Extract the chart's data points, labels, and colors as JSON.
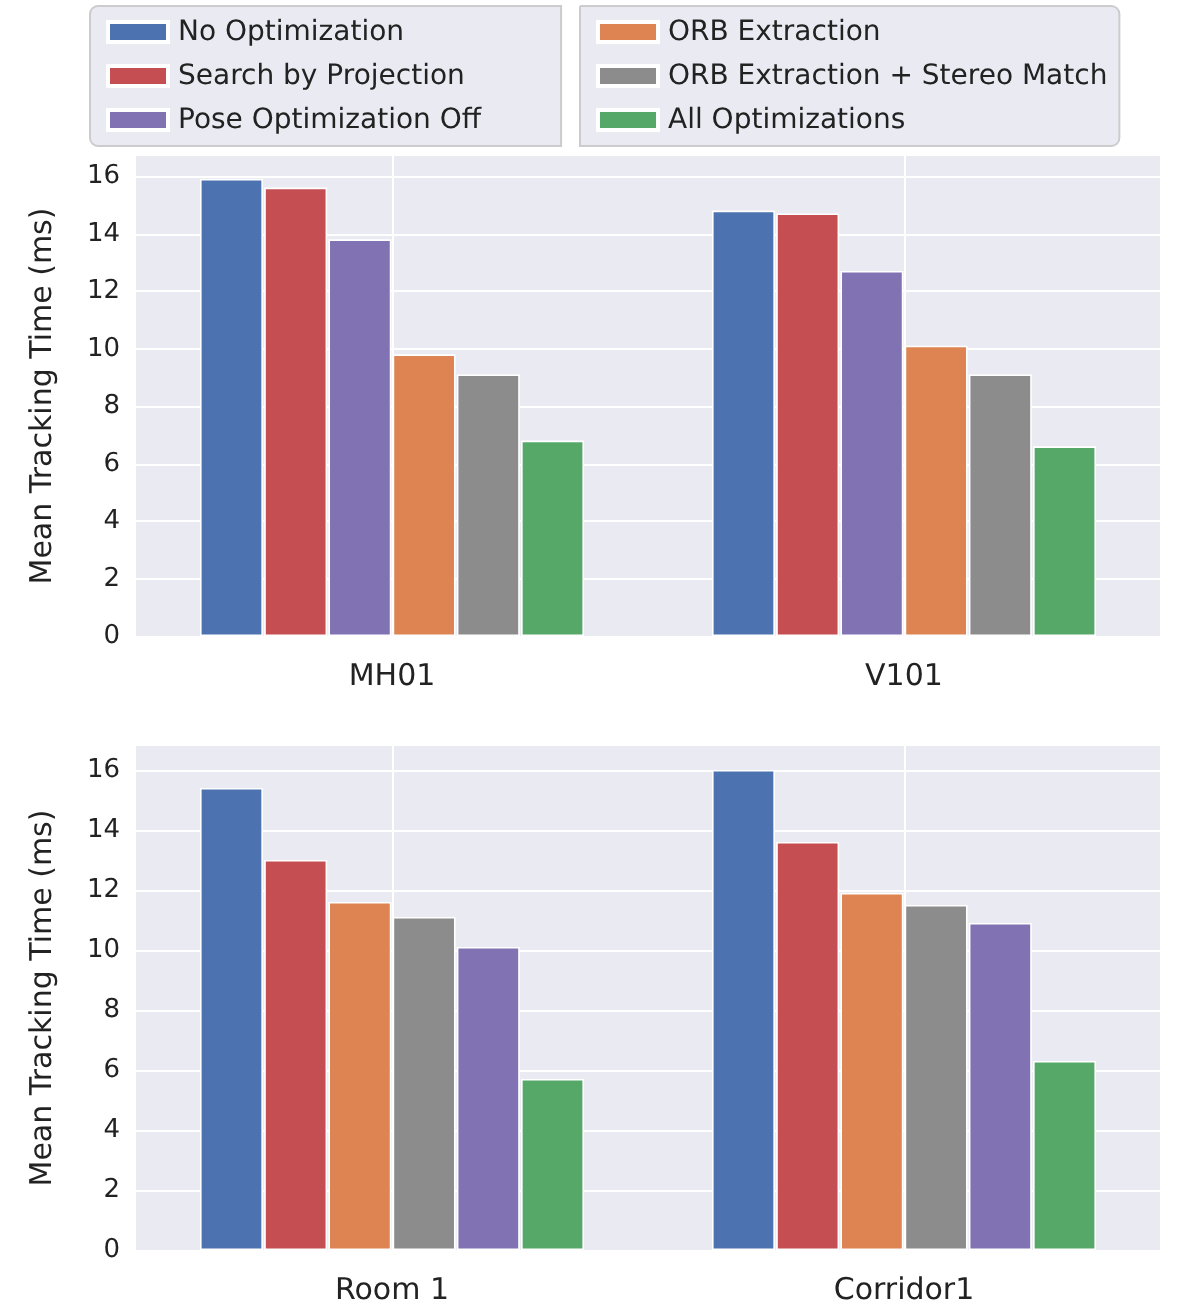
{
  "chart_data": [
    {
      "type": "bar",
      "categories": [
        "MH01",
        "V101"
      ],
      "ylabel": "Mean Tracking Time (ms)",
      "ylim": [
        0,
        16.7
      ],
      "yticks": [
        0,
        2,
        4,
        6,
        8,
        10,
        12,
        14,
        16
      ],
      "grid": true,
      "legend": "top",
      "series": [
        {
          "name": "No Optimization",
          "color": "#4c72b0",
          "values": [
            15.9,
            14.8
          ]
        },
        {
          "name": "Search by Projection",
          "color": "#c44e52",
          "values": [
            15.6,
            14.7
          ]
        },
        {
          "name": "Pose Optimization Off",
          "color": "#8172b3",
          "values": [
            13.8,
            12.7
          ]
        },
        {
          "name": "ORB Extraction",
          "color": "#dd8452",
          "values": [
            9.8,
            10.1
          ]
        },
        {
          "name": "ORB Extraction + Stereo Match",
          "color": "#8c8c8c",
          "values": [
            9.1,
            9.1
          ]
        },
        {
          "name": "All Optimizations",
          "color": "#55a868",
          "values": [
            6.8,
            6.6
          ]
        }
      ]
    },
    {
      "type": "bar",
      "categories": [
        "Room 1",
        "Corridor1"
      ],
      "ylabel": "Mean Tracking Time (ms)",
      "ylim": [
        0,
        16.8
      ],
      "yticks": [
        0,
        2,
        4,
        6,
        8,
        10,
        12,
        14,
        16
      ],
      "grid": true,
      "series": [
        {
          "color": "#4c72b0",
          "values": [
            15.4,
            16.0
          ]
        },
        {
          "color": "#c44e52",
          "values": [
            13.0,
            13.6
          ]
        },
        {
          "color": "#dd8452",
          "values": [
            11.6,
            11.9
          ]
        },
        {
          "color": "#8c8c8c",
          "values": [
            11.1,
            11.5
          ]
        },
        {
          "color": "#8172b3",
          "values": [
            10.1,
            10.9
          ]
        },
        {
          "color": "#55a868",
          "values": [
            5.7,
            6.3
          ]
        }
      ]
    }
  ]
}
